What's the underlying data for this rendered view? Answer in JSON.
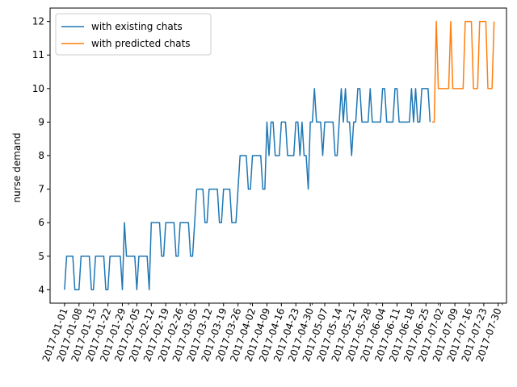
{
  "chart_data": {
    "type": "line",
    "title": "",
    "xlabel": "",
    "ylabel": "nurse demand",
    "xlim": [
      "2016-12-25",
      "2017-08-03"
    ],
    "ylim": [
      3.6,
      12.4
    ],
    "y_ticks": [
      4,
      5,
      6,
      7,
      8,
      9,
      10,
      11,
      12
    ],
    "x_ticks": [
      "2017-01-01",
      "2017-01-08",
      "2017-01-15",
      "2017-01-22",
      "2017-01-29",
      "2017-02-05",
      "2017-02-12",
      "2017-02-19",
      "2017-02-26",
      "2017-03-05",
      "2017-03-12",
      "2017-03-19",
      "2017-03-26",
      "2017-04-02",
      "2017-04-09",
      "2017-04-16",
      "2017-04-23",
      "2017-04-30",
      "2017-05-07",
      "2017-05-14",
      "2017-05-21",
      "2017-05-28",
      "2017-06-04",
      "2017-06-11",
      "2017-06-18",
      "2017-06-25",
      "2017-07-02",
      "2017-07-09",
      "2017-07-16",
      "2017-07-23",
      "2017-07-30"
    ],
    "grid": false,
    "legend_position": "top-left",
    "series": [
      {
        "name": "with existing chats",
        "color": "#1f77b4",
        "x_start": "2017-01-01",
        "values": [
          4,
          5,
          5,
          5,
          5,
          4,
          4,
          4,
          5,
          5,
          5,
          5,
          5,
          4,
          4,
          5,
          5,
          5,
          5,
          5,
          4,
          4,
          5,
          5,
          5,
          5,
          5,
          5,
          4,
          6,
          5,
          5,
          5,
          5,
          5,
          4,
          5,
          5,
          5,
          5,
          5,
          4,
          6,
          6,
          6,
          6,
          6,
          5,
          5,
          6,
          6,
          6,
          6,
          6,
          5,
          5,
          6,
          6,
          6,
          6,
          6,
          5,
          5,
          6,
          7,
          7,
          7,
          7,
          6,
          6,
          7,
          7,
          7,
          7,
          7,
          6,
          6,
          7,
          7,
          7,
          7,
          6,
          6,
          6,
          7,
          8,
          8,
          8,
          8,
          7,
          7,
          8,
          8,
          8,
          8,
          8,
          7,
          7,
          9,
          8,
          9,
          9,
          8,
          8,
          8,
          9,
          9,
          9,
          8,
          8,
          8,
          8,
          9,
          9,
          8,
          9,
          8,
          8,
          7,
          9,
          9,
          10,
          9,
          9,
          9,
          8,
          9,
          9,
          9,
          9,
          9,
          8,
          8,
          9,
          10,
          9,
          10,
          9,
          9,
          8,
          9,
          9,
          10,
          10,
          9,
          9,
          9,
          9,
          10,
          9,
          9,
          9,
          9,
          9,
          10,
          10,
          9,
          9,
          9,
          9,
          10,
          10,
          9,
          9,
          9,
          9,
          9,
          9,
          10,
          9,
          10,
          9,
          9,
          10,
          10,
          10,
          10,
          9
        ]
      },
      {
        "name": "with predicted chats",
        "color": "#ff7f0e",
        "x_start": "2017-06-28",
        "values": [
          9,
          9,
          12,
          10,
          10,
          10,
          10,
          10,
          10,
          12,
          10,
          10,
          10,
          10,
          10,
          10,
          12,
          12,
          12,
          12,
          10,
          10,
          10,
          12,
          12,
          12,
          12,
          10,
          10,
          10,
          12
        ]
      }
    ]
  }
}
